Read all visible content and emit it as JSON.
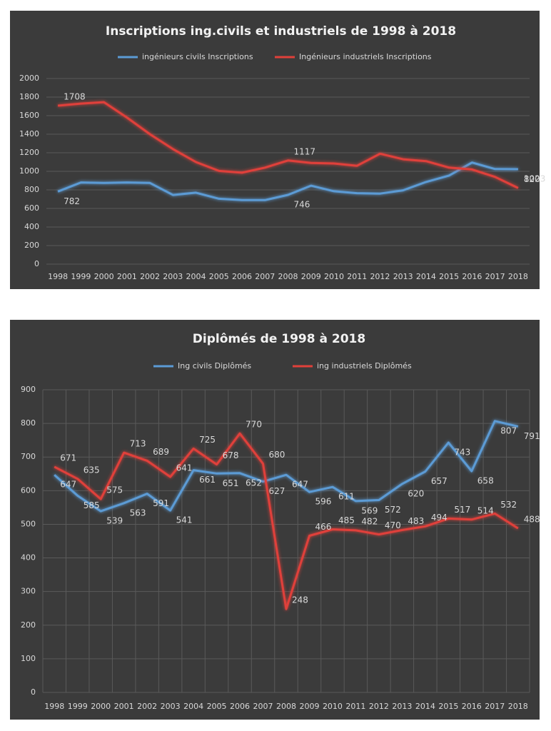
{
  "chart_data": [
    {
      "type": "line",
      "title": "Inscriptions ing.civils et industriels de 1998 à 2018",
      "categories": [
        "1998",
        "1999",
        "2000",
        "2001",
        "2002",
        "2003",
        "2004",
        "2005",
        "2006",
        "2007",
        "2008",
        "2009",
        "2010",
        "2011",
        "2012",
        "2013",
        "2014",
        "2015",
        "2016",
        "2017",
        "2018"
      ],
      "series": [
        {
          "name": "ingénieurs civils Inscriptions",
          "color": "#5b9bd5",
          "values": [
            782,
            880,
            875,
            880,
            875,
            745,
            770,
            705,
            690,
            690,
            746,
            845,
            785,
            765,
            760,
            795,
            885,
            955,
            1095,
            1025,
            1023
          ],
          "value_labels": [
            "782",
            null,
            null,
            null,
            null,
            null,
            null,
            null,
            null,
            null,
            "746",
            null,
            null,
            null,
            null,
            null,
            null,
            null,
            null,
            null,
            "1023"
          ]
        },
        {
          "name": "Ingénieurs industriels Inscriptions",
          "color": "#e0403a",
          "values": [
            1708,
            1730,
            1745,
            1580,
            1400,
            1240,
            1100,
            1005,
            985,
            1040,
            1117,
            1090,
            1085,
            1060,
            1190,
            1130,
            1110,
            1040,
            1020,
            940,
            820
          ],
          "value_labels": [
            "1708",
            null,
            null,
            null,
            null,
            null,
            null,
            null,
            null,
            null,
            "1117",
            null,
            null,
            null,
            null,
            null,
            null,
            null,
            null,
            null,
            "820"
          ]
        }
      ],
      "ylim": [
        0,
        2000
      ],
      "yticks": [
        0,
        200,
        400,
        600,
        800,
        1000,
        1200,
        1400,
        1600,
        1800,
        2000
      ],
      "grid": true
    },
    {
      "type": "line",
      "title": "Diplômés de 1998 à 2018",
      "categories": [
        "1998",
        "1999",
        "2000",
        "2001",
        "2002",
        "2003",
        "2004",
        "2005",
        "2006",
        "2007",
        "2008",
        "2009",
        "2010",
        "2011",
        "2012",
        "2013",
        "2014",
        "2015",
        "2016",
        "2017",
        "2018"
      ],
      "series": [
        {
          "name": "Ing civils Diplômés",
          "color": "#5b9bd5",
          "values": [
            647,
            585,
            539,
            563,
            591,
            541,
            661,
            651,
            652,
            627,
            647,
            596,
            611,
            569,
            572,
            620,
            657,
            743,
            658,
            807,
            791
          ]
        },
        {
          "name": "ing industriels Diplômés",
          "color": "#e0403a",
          "values": [
            671,
            635,
            575,
            713,
            689,
            641,
            725,
            678,
            770,
            680,
            248,
            466,
            485,
            482,
            470,
            483,
            494,
            517,
            514,
            532,
            488
          ]
        }
      ],
      "ylim": [
        0,
        900
      ],
      "yticks": [
        0,
        100,
        200,
        300,
        400,
        500,
        600,
        700,
        800,
        900
      ],
      "grid": true
    }
  ]
}
